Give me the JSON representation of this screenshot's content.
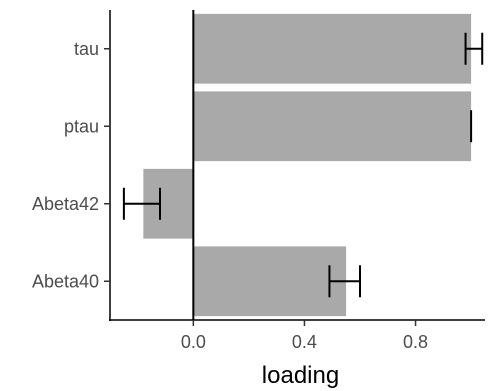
{
  "chart_data": {
    "type": "bar",
    "orientation": "horizontal",
    "categories": [
      "tau",
      "ptau",
      "Abeta42",
      "Abeta40"
    ],
    "values": [
      1.0,
      1.0,
      -0.18,
      0.55
    ],
    "error_low": [
      0.98,
      1.0,
      -0.25,
      0.49
    ],
    "error_high": [
      1.04,
      1.0,
      -0.12,
      0.6
    ],
    "xlabel": "loading",
    "ylabel": "",
    "xlim": [
      -0.3,
      1.05
    ],
    "xticks": [
      0.0,
      0.4,
      0.8
    ],
    "xtick_labels": [
      "0.0",
      "0.4",
      "0.8"
    ],
    "grid": false,
    "bar_color": "#a9a9a9",
    "axis_color": "#000000",
    "error_color": "#000000"
  }
}
